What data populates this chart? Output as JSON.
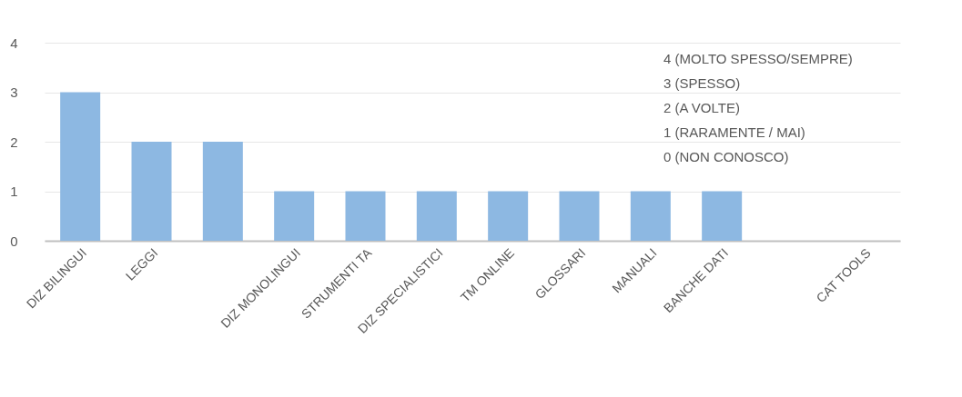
{
  "chart_data": {
    "type": "bar",
    "categories": [
      "DIZ BILINGUI",
      "LEGGI",
      null,
      "DIZ MONOLINGUI",
      "STRUMENTI TA",
      "DIZ SPECIALISTICI",
      "TM ONLINE",
      "GLOSSARI",
      "MANUALI",
      "BANCHE DATI",
      null,
      "CAT TOOLS"
    ],
    "values": [
      3,
      2,
      2,
      1,
      1,
      1,
      1,
      1,
      1,
      1,
      0,
      0
    ],
    "color": "#8db8e2",
    "ylim": [
      0,
      4
    ],
    "yticks": [
      0,
      1,
      2,
      3,
      4
    ],
    "grid": "y",
    "annotations": [
      "4 (MOLTO SPESSO/SEMPRE)",
      "3 (SPESSO)",
      "2 (A VOLTE)",
      "1 (RARAMENTE / MAI)",
      "0 (NON CONOSCO)"
    ]
  }
}
